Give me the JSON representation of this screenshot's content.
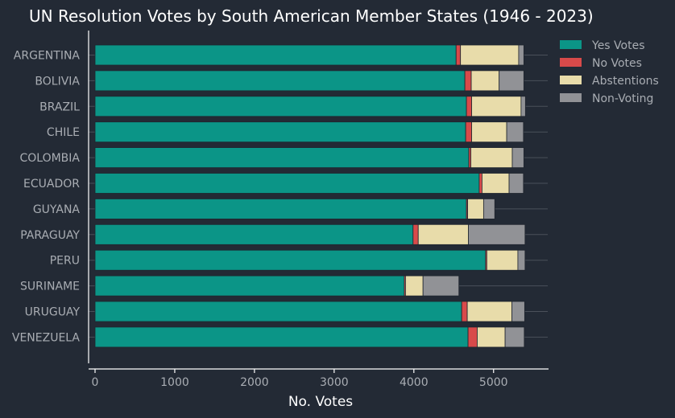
{
  "chart_data": {
    "type": "bar",
    "orientation": "horizontal",
    "stacked": true,
    "title": "UN Resolution Votes by South American Member States (1946 - 2023)",
    "xlabel": "No. Votes",
    "ylabel": "",
    "xlim": [
      0,
      5700
    ],
    "xticks": [
      0,
      1000,
      2000,
      3000,
      4000,
      5000
    ],
    "grid": true,
    "legend_position": "top-right",
    "categories": [
      "ARGENTINA",
      "BOLIVIA",
      "BRAZIL",
      "CHILE",
      "COLOMBIA",
      "ECUADOR",
      "GUYANA",
      "PARAGUAY",
      "PERU",
      "SURINAME",
      "URUGUAY",
      "VENEZUELA"
    ],
    "series": [
      {
        "name": "Yes Votes",
        "color": "#0b9587",
        "values": [
          4530,
          4640,
          4660,
          4650,
          4690,
          4820,
          4660,
          3990,
          4900,
          3880,
          4600,
          4680
        ]
      },
      {
        "name": "No Votes",
        "color": "#d84a4a",
        "values": [
          55,
          80,
          65,
          75,
          25,
          35,
          15,
          65,
          15,
          15,
          70,
          115
        ]
      },
      {
        "name": "Abstentions",
        "color": "#e8dcaa",
        "values": [
          730,
          350,
          620,
          440,
          520,
          340,
          200,
          630,
          390,
          220,
          560,
          350
        ]
      },
      {
        "name": "Non-Voting",
        "color": "#919296",
        "values": [
          65,
          310,
          55,
          210,
          145,
          180,
          140,
          710,
          90,
          450,
          160,
          240
        ]
      }
    ]
  }
}
